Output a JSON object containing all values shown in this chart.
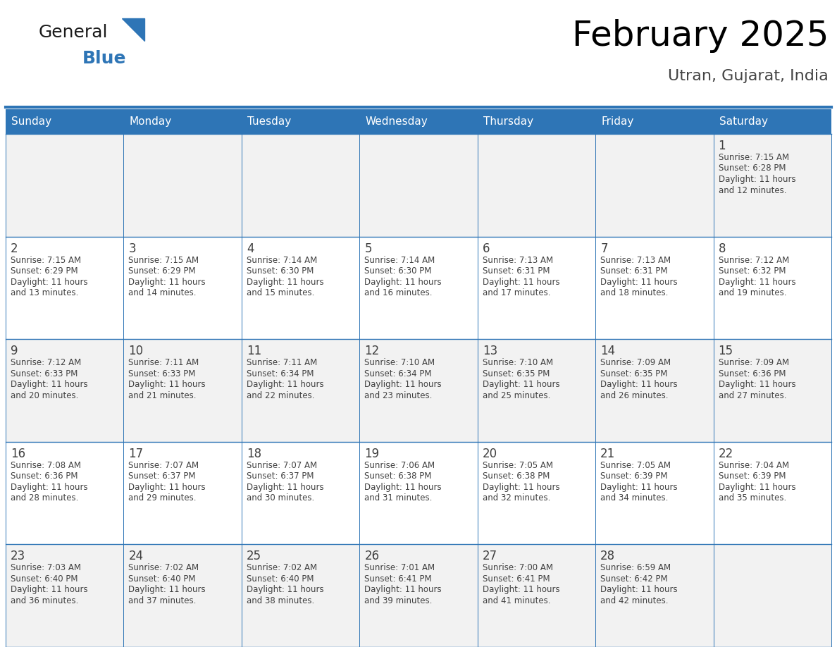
{
  "title": "February 2025",
  "subtitle": "Utran, Gujarat, India",
  "header_bg": "#2E75B6",
  "header_text_color": "#FFFFFF",
  "cell_bg_odd": "#F2F2F2",
  "cell_bg_even": "#FFFFFF",
  "border_color": "#2E75B6",
  "day_headers": [
    "Sunday",
    "Monday",
    "Tuesday",
    "Wednesday",
    "Thursday",
    "Friday",
    "Saturday"
  ],
  "days_data": [
    {
      "day": 1,
      "col": 6,
      "row": 0,
      "sunrise": "7:15 AM",
      "sunset": "6:28 PM",
      "daylight_h": "11 hours",
      "daylight_m": "12 minutes."
    },
    {
      "day": 2,
      "col": 0,
      "row": 1,
      "sunrise": "7:15 AM",
      "sunset": "6:29 PM",
      "daylight_h": "11 hours",
      "daylight_m": "13 minutes."
    },
    {
      "day": 3,
      "col": 1,
      "row": 1,
      "sunrise": "7:15 AM",
      "sunset": "6:29 PM",
      "daylight_h": "11 hours",
      "daylight_m": "14 minutes."
    },
    {
      "day": 4,
      "col": 2,
      "row": 1,
      "sunrise": "7:14 AM",
      "sunset": "6:30 PM",
      "daylight_h": "11 hours",
      "daylight_m": "15 minutes."
    },
    {
      "day": 5,
      "col": 3,
      "row": 1,
      "sunrise": "7:14 AM",
      "sunset": "6:30 PM",
      "daylight_h": "11 hours",
      "daylight_m": "16 minutes."
    },
    {
      "day": 6,
      "col": 4,
      "row": 1,
      "sunrise": "7:13 AM",
      "sunset": "6:31 PM",
      "daylight_h": "11 hours",
      "daylight_m": "17 minutes."
    },
    {
      "day": 7,
      "col": 5,
      "row": 1,
      "sunrise": "7:13 AM",
      "sunset": "6:31 PM",
      "daylight_h": "11 hours",
      "daylight_m": "18 minutes."
    },
    {
      "day": 8,
      "col": 6,
      "row": 1,
      "sunrise": "7:12 AM",
      "sunset": "6:32 PM",
      "daylight_h": "11 hours",
      "daylight_m": "19 minutes."
    },
    {
      "day": 9,
      "col": 0,
      "row": 2,
      "sunrise": "7:12 AM",
      "sunset": "6:33 PM",
      "daylight_h": "11 hours",
      "daylight_m": "20 minutes."
    },
    {
      "day": 10,
      "col": 1,
      "row": 2,
      "sunrise": "7:11 AM",
      "sunset": "6:33 PM",
      "daylight_h": "11 hours",
      "daylight_m": "21 minutes."
    },
    {
      "day": 11,
      "col": 2,
      "row": 2,
      "sunrise": "7:11 AM",
      "sunset": "6:34 PM",
      "daylight_h": "11 hours",
      "daylight_m": "22 minutes."
    },
    {
      "day": 12,
      "col": 3,
      "row": 2,
      "sunrise": "7:10 AM",
      "sunset": "6:34 PM",
      "daylight_h": "11 hours",
      "daylight_m": "23 minutes."
    },
    {
      "day": 13,
      "col": 4,
      "row": 2,
      "sunrise": "7:10 AM",
      "sunset": "6:35 PM",
      "daylight_h": "11 hours",
      "daylight_m": "25 minutes."
    },
    {
      "day": 14,
      "col": 5,
      "row": 2,
      "sunrise": "7:09 AM",
      "sunset": "6:35 PM",
      "daylight_h": "11 hours",
      "daylight_m": "26 minutes."
    },
    {
      "day": 15,
      "col": 6,
      "row": 2,
      "sunrise": "7:09 AM",
      "sunset": "6:36 PM",
      "daylight_h": "11 hours",
      "daylight_m": "27 minutes."
    },
    {
      "day": 16,
      "col": 0,
      "row": 3,
      "sunrise": "7:08 AM",
      "sunset": "6:36 PM",
      "daylight_h": "11 hours",
      "daylight_m": "28 minutes."
    },
    {
      "day": 17,
      "col": 1,
      "row": 3,
      "sunrise": "7:07 AM",
      "sunset": "6:37 PM",
      "daylight_h": "11 hours",
      "daylight_m": "29 minutes."
    },
    {
      "day": 18,
      "col": 2,
      "row": 3,
      "sunrise": "7:07 AM",
      "sunset": "6:37 PM",
      "daylight_h": "11 hours",
      "daylight_m": "30 minutes."
    },
    {
      "day": 19,
      "col": 3,
      "row": 3,
      "sunrise": "7:06 AM",
      "sunset": "6:38 PM",
      "daylight_h": "11 hours",
      "daylight_m": "31 minutes."
    },
    {
      "day": 20,
      "col": 4,
      "row": 3,
      "sunrise": "7:05 AM",
      "sunset": "6:38 PM",
      "daylight_h": "11 hours",
      "daylight_m": "32 minutes."
    },
    {
      "day": 21,
      "col": 5,
      "row": 3,
      "sunrise": "7:05 AM",
      "sunset": "6:39 PM",
      "daylight_h": "11 hours",
      "daylight_m": "34 minutes."
    },
    {
      "day": 22,
      "col": 6,
      "row": 3,
      "sunrise": "7:04 AM",
      "sunset": "6:39 PM",
      "daylight_h": "11 hours",
      "daylight_m": "35 minutes."
    },
    {
      "day": 23,
      "col": 0,
      "row": 4,
      "sunrise": "7:03 AM",
      "sunset": "6:40 PM",
      "daylight_h": "11 hours",
      "daylight_m": "36 minutes."
    },
    {
      "day": 24,
      "col": 1,
      "row": 4,
      "sunrise": "7:02 AM",
      "sunset": "6:40 PM",
      "daylight_h": "11 hours",
      "daylight_m": "37 minutes."
    },
    {
      "day": 25,
      "col": 2,
      "row": 4,
      "sunrise": "7:02 AM",
      "sunset": "6:40 PM",
      "daylight_h": "11 hours",
      "daylight_m": "38 minutes."
    },
    {
      "day": 26,
      "col": 3,
      "row": 4,
      "sunrise": "7:01 AM",
      "sunset": "6:41 PM",
      "daylight_h": "11 hours",
      "daylight_m": "39 minutes."
    },
    {
      "day": 27,
      "col": 4,
      "row": 4,
      "sunrise": "7:00 AM",
      "sunset": "6:41 PM",
      "daylight_h": "11 hours",
      "daylight_m": "41 minutes."
    },
    {
      "day": 28,
      "col": 5,
      "row": 4,
      "sunrise": "6:59 AM",
      "sunset": "6:42 PM",
      "daylight_h": "11 hours",
      "daylight_m": "42 minutes."
    }
  ],
  "num_rows": 5,
  "num_cols": 7,
  "logo_general": "General",
  "logo_blue": "Blue",
  "logo_general_color": "#1a1a1a",
  "logo_blue_color": "#2E75B6",
  "logo_triangle_color": "#2E75B6",
  "text_color": "#404040"
}
